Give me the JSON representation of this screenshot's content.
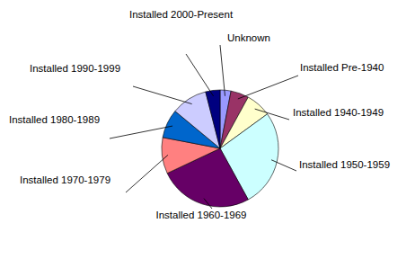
{
  "chart_data": {
    "type": "pie",
    "categories": [
      "Unknown",
      "Installed Pre-1940",
      "Installed 1940-1949",
      "Installed 1950-1959",
      "Installed 1960-1969",
      "Installed 1970-1979",
      "Installed 1980-1989",
      "Installed 1990-1999",
      "Installed 2000-Present"
    ],
    "values": [
      3,
      5,
      7,
      27,
      26,
      10,
      8,
      10,
      4
    ],
    "colors": [
      "#9999ff",
      "#993366",
      "#ffffcc",
      "#ccffff",
      "#660066",
      "#ff8080",
      "#0066cc",
      "#ccccff",
      "#000080"
    ]
  }
}
